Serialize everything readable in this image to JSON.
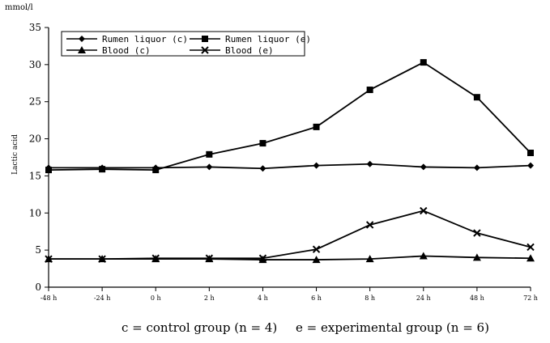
{
  "chart_data": {
    "type": "line",
    "unit_label": "mmol/l",
    "ylabel": "Lactic acid",
    "xlabel": "",
    "categories": [
      "-48 h",
      "-24 h",
      "0 h",
      "2 h",
      "4 h",
      "6 h",
      "8 h",
      "24 h",
      "48 h",
      "72 h"
    ],
    "ylim": [
      0,
      35
    ],
    "yticks": [
      0,
      5,
      10,
      15,
      20,
      25,
      30,
      35
    ],
    "grid": false,
    "legend_position": "top-left",
    "series": [
      {
        "name": "Rumen liquor (c)",
        "marker": "diamond",
        "values": [
          16.1,
          16.1,
          16.1,
          16.2,
          16.0,
          16.4,
          16.6,
          16.2,
          16.1,
          16.4
        ]
      },
      {
        "name": "Rumen liquor (e)",
        "marker": "square",
        "values": [
          15.8,
          15.9,
          15.8,
          17.9,
          19.4,
          21.6,
          26.6,
          30.3,
          25.6,
          18.1
        ]
      },
      {
        "name": "Blood (c)",
        "marker": "triangle",
        "values": [
          3.8,
          3.8,
          3.8,
          3.8,
          3.7,
          3.7,
          3.8,
          4.2,
          4.0,
          3.9
        ]
      },
      {
        "name": "Blood (e)",
        "marker": "cross",
        "values": [
          3.8,
          3.8,
          3.9,
          3.9,
          3.9,
          5.1,
          8.4,
          10.3,
          7.3,
          5.4
        ]
      }
    ],
    "caption": [
      "c = control group (n = 4)",
      "e = experimental group (n = 6)"
    ]
  }
}
